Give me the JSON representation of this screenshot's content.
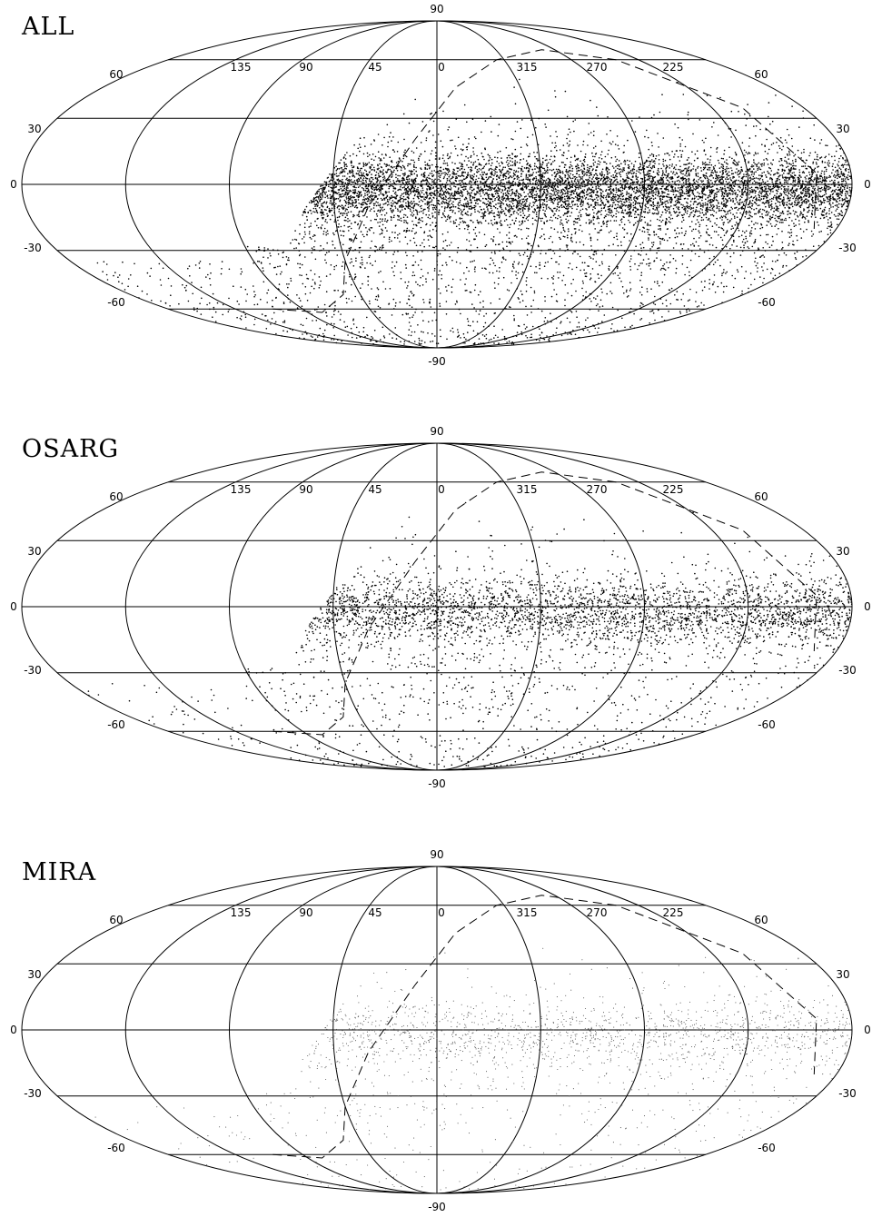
{
  "chart_data": [
    {
      "type": "scatter",
      "title": "ALL",
      "projection": "mollweide",
      "coordinates": "galactic",
      "latitude_ticks": [
        "90",
        "60",
        "30",
        "0",
        "-30",
        "-60",
        "-90"
      ],
      "longitude_ticks": [
        "135",
        "90",
        "45",
        "0",
        "315",
        "270",
        "225"
      ],
      "density": 1.0,
      "dot_color": "#000000",
      "curve": "dashed"
    },
    {
      "type": "scatter",
      "title": "OSARG",
      "projection": "mollweide",
      "coordinates": "galactic",
      "latitude_ticks": [
        "90",
        "60",
        "30",
        "0",
        "-30",
        "-60",
        "-90"
      ],
      "longitude_ticks": [
        "135",
        "90",
        "45",
        "0",
        "315",
        "270",
        "225"
      ],
      "density": 0.45,
      "dot_color": "#000000",
      "curve": "dashed"
    },
    {
      "type": "scatter",
      "title": "MIRA",
      "projection": "mollweide",
      "coordinates": "galactic",
      "latitude_ticks": [
        "90",
        "60",
        "30",
        "0",
        "-30",
        "-60",
        "-90"
      ],
      "longitude_ticks": [
        "135",
        "90",
        "45",
        "0",
        "315",
        "270",
        "225"
      ],
      "density": 0.22,
      "dot_color": "#555555",
      "curve": "dashed"
    }
  ]
}
